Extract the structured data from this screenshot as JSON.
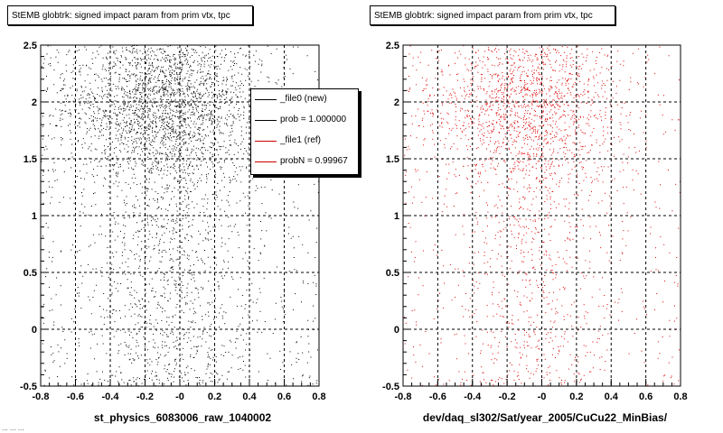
{
  "panels": [
    {
      "title": "StEMB globtrk: signed impact param from prim vtx, tpc",
      "xtitle": "st_physics_6083006_raw_1040002"
    },
    {
      "title": "StEMB globtrk: signed impact param from prim vtx, tpc",
      "xtitle": "dev/daq_sl302/Sat/year_2005/CuCu22_MinBias/"
    }
  ],
  "legend": {
    "entries": [
      {
        "label": "_file0 (new)",
        "color": "#000000"
      },
      {
        "label": "prob = 1.000000",
        "color": "#000000"
      },
      {
        "label": "_file1 (ref)",
        "color": "#cc0000"
      },
      {
        "label": "probN = 0.99967",
        "color": "#cc0000"
      }
    ]
  },
  "footer": "... ... ...",
  "chart_data": [
    {
      "type": "scatter",
      "title": "StEMB globtrk: signed impact param from prim vtx, tpc",
      "xlabel": "st_physics_6083006_raw_1040002",
      "ylabel": "",
      "xlim": [
        -0.8,
        0.8
      ],
      "ylim": [
        -0.5,
        2.5
      ],
      "xticks": [
        "-0.8",
        "-0.6",
        "-0.4",
        "-0.2",
        "-0",
        "0.2",
        "0.4",
        "0.6",
        "0.8"
      ],
      "yticks": [
        "-0.5",
        "0",
        "0.5",
        "1",
        "1.5",
        "2",
        "2.5"
      ],
      "grid": true,
      "color": "#000000",
      "series": [
        {
          "name": "_file0 (new)",
          "points": 9000
        }
      ]
    },
    {
      "type": "scatter",
      "title": "StEMB globtrk: signed impact param from prim vtx, tpc",
      "xlabel": "dev/daq_sl302/Sat/year_2005/CuCu22_MinBias/",
      "ylabel": "",
      "xlim": [
        -0.8,
        0.8
      ],
      "ylim": [
        -0.5,
        2.5
      ],
      "xticks": [
        "-0.8",
        "-0.6",
        "-0.4",
        "-0.2",
        "-0",
        "0.2",
        "0.4",
        "0.6",
        "0.8"
      ],
      "yticks": [
        "-0.5",
        "0",
        "0.5",
        "1",
        "1.5",
        "2",
        "2.5"
      ],
      "grid": true,
      "color": "#dd0000",
      "series": [
        {
          "name": "_file1 (ref)",
          "points": 7000
        }
      ]
    }
  ]
}
